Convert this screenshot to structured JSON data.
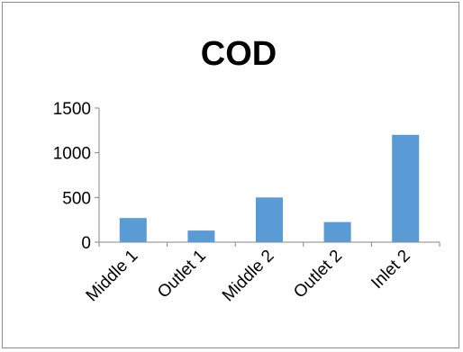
{
  "chart_data": {
    "type": "bar",
    "title": "COD",
    "categories": [
      "Middle 1",
      "Outlet 1",
      "Middle 2",
      "Outlet 2",
      "Inlet 2"
    ],
    "values": [
      270,
      130,
      500,
      225,
      1200
    ],
    "y_ticks": [
      "0",
      "500",
      "1000",
      "1500"
    ],
    "ylim": [
      0,
      1500
    ],
    "xlabel": "",
    "ylabel": "",
    "grid": false,
    "legend": "none",
    "bar_color": "#5B9BD5",
    "axis_color": "#868686"
  }
}
